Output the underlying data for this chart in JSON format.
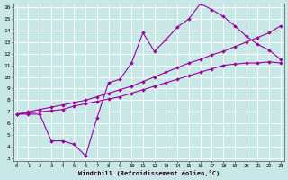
{
  "xlabel": "Windchill (Refroidissement éolien,°C)",
  "xlim": [
    0,
    23
  ],
  "ylim": [
    3,
    16
  ],
  "xticks": [
    0,
    1,
    2,
    3,
    4,
    5,
    6,
    7,
    8,
    9,
    10,
    11,
    12,
    13,
    14,
    15,
    16,
    17,
    18,
    19,
    20,
    21,
    22,
    23
  ],
  "yticks": [
    3,
    4,
    5,
    6,
    7,
    8,
    9,
    10,
    11,
    12,
    13,
    14,
    15,
    16
  ],
  "bg_color": "#c8e8e8",
  "grid_color": "#ffffff",
  "line_color": "#990099",
  "line1_x": [
    0,
    1,
    2,
    3,
    4,
    5,
    6,
    7,
    8,
    9,
    10,
    11,
    12,
    13,
    14,
    15,
    16,
    17,
    18,
    19,
    20,
    21,
    22,
    23
  ],
  "line1_y": [
    6.8,
    6.8,
    6.8,
    4.5,
    4.5,
    4.2,
    3.2,
    6.5,
    9.5,
    9.8,
    11.2,
    13.8,
    12.2,
    13.2,
    14.3,
    15.0,
    16.3,
    15.8,
    15.2,
    14.4,
    13.5,
    12.8,
    12.3,
    11.5
  ],
  "line2_x": [
    0,
    1,
    2,
    3,
    4,
    5,
    6,
    7,
    8,
    9,
    10,
    11,
    12,
    13,
    14,
    15,
    16,
    17,
    18,
    19,
    20,
    21,
    22,
    23
  ],
  "line2_y": [
    6.8,
    7.0,
    7.2,
    7.4,
    7.6,
    7.8,
    8.0,
    8.3,
    8.6,
    8.9,
    9.2,
    9.6,
    10.0,
    10.4,
    10.8,
    11.2,
    11.5,
    11.9,
    12.2,
    12.6,
    13.0,
    13.4,
    13.8,
    14.4
  ],
  "line3_x": [
    0,
    1,
    2,
    3,
    4,
    5,
    6,
    7,
    8,
    9,
    10,
    11,
    12,
    13,
    14,
    15,
    16,
    17,
    18,
    19,
    20,
    21,
    22,
    23
  ],
  "line3_y": [
    6.8,
    6.9,
    7.0,
    7.1,
    7.2,
    7.5,
    7.7,
    7.9,
    8.1,
    8.3,
    8.6,
    8.9,
    9.2,
    9.5,
    9.8,
    10.1,
    10.4,
    10.7,
    11.0,
    11.1,
    11.2,
    11.2,
    11.3,
    11.2
  ]
}
